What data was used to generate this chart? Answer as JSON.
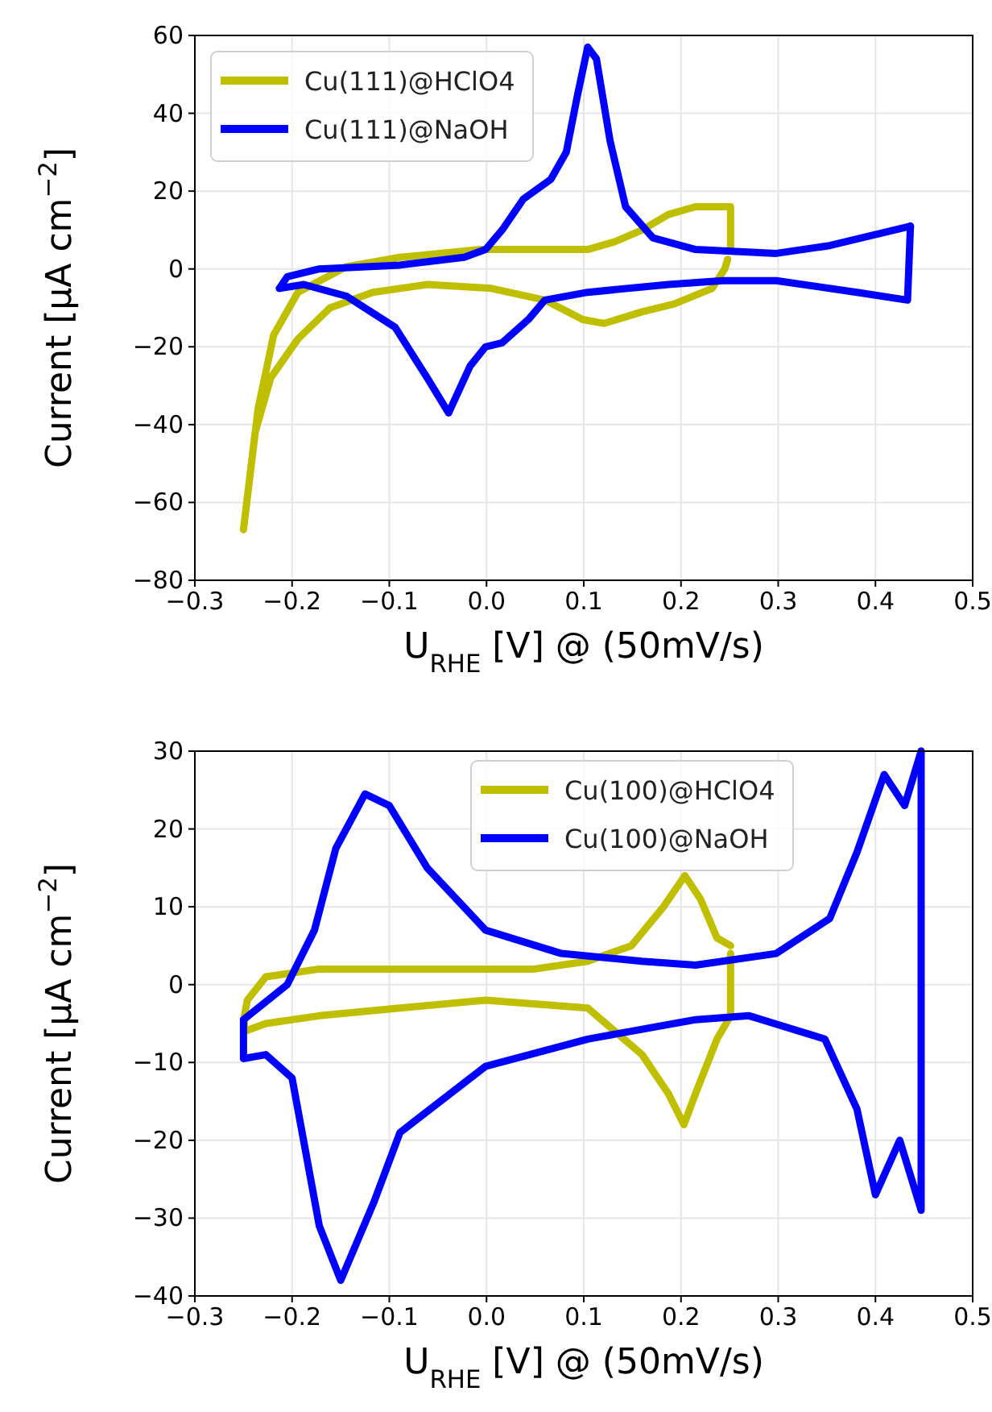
{
  "chart_data": [
    {
      "type": "line",
      "xlabel": "U$_{RHE}$ [V] @ (50mV/s)",
      "ylabel": "Current [μA cm$^{−2}$]",
      "xlim": [
        -0.3,
        0.5
      ],
      "ylim": [
        -80,
        60
      ],
      "xticks": [
        {
          "value": -0.3,
          "label": "−0.3"
        },
        {
          "value": -0.2,
          "label": "−0.2"
        },
        {
          "value": -0.1,
          "label": "−0.1"
        },
        {
          "value": 0,
          "label": "0.0"
        },
        {
          "value": 0.1,
          "label": "0.1"
        },
        {
          "value": 0.2,
          "label": "0.2"
        },
        {
          "value": 0.3,
          "label": "0.3"
        },
        {
          "value": 0.4,
          "label": "0.4"
        },
        {
          "value": 0.5,
          "label": "0.5"
        }
      ],
      "yticks": [
        {
          "value": -80,
          "label": "−80"
        },
        {
          "value": -60,
          "label": "−60"
        },
        {
          "value": -40,
          "label": "−40"
        },
        {
          "value": -20,
          "label": "−20"
        },
        0,
        20,
        40,
        60
      ],
      "grid": true,
      "legend": "top left",
      "line_style": "solid",
      "marker": "none",
      "series": [
        {
          "name": "Cu(111)@HClO4",
          "color": "#bfbf00",
          "x": [
            0.248,
            0.245,
            0.232,
            0.193,
            0.16,
            0.121,
            0.099,
            0.06,
            0.005,
            -0.061,
            -0.117,
            -0.161,
            -0.194,
            -0.222,
            -0.238,
            -0.25,
            -0.235,
            -0.219,
            -0.194,
            -0.144,
            -0.089,
            -0.006,
            0.104,
            0.132,
            0.16,
            0.187,
            0.215,
            0.251,
            0.251
          ],
          "values": [
            2.5,
            0,
            -5,
            -9,
            -11,
            -14,
            -13,
            -8,
            -5,
            -4,
            -6,
            -10,
            -18,
            -28,
            -42,
            -67,
            -36,
            -17,
            -6,
            0.6,
            3,
            5,
            5,
            7,
            10,
            14,
            16,
            16,
            5
          ]
        },
        {
          "name": "Cu(111)@NaOH",
          "color": "#0000ff",
          "x": [
            -0.213,
            -0.205,
            -0.172,
            -0.089,
            -0.023,
            -0.001,
            0.016,
            0.038,
            0.066,
            0.082,
            0.093,
            0.104,
            0.113,
            0.127,
            0.143,
            0.171,
            0.215,
            0.298,
            0.353,
            0.436
          ],
          "values": [
            -5,
            -2,
            0,
            1,
            3,
            5,
            10,
            18,
            23,
            30,
            44,
            57,
            54,
            33,
            16,
            8,
            5,
            4,
            6,
            11
          ]
        },
        {
          "color": "#0000ff",
          "x": [
            0.436,
            0.433,
            0.381,
            0.298,
            0.243,
            0.187,
            0.104,
            0.06,
            0.043,
            0.016,
            -0.001,
            -0.017,
            -0.039,
            -0.061,
            -0.094,
            -0.144,
            -0.188,
            -0.213
          ],
          "values": [
            11,
            -8,
            -6,
            -3,
            -3,
            -4,
            -6,
            -8,
            -13,
            -19,
            -20,
            -25,
            -37,
            -28,
            -15,
            -7,
            -4,
            -5
          ]
        }
      ]
    },
    {
      "type": "line",
      "xlabel": "U$_{RHE}$ [V] @ (50mV/s)",
      "ylabel": "Current [μA cm$^{−2}$]",
      "xlim": [
        -0.3,
        0.5
      ],
      "ylim": [
        -40,
        30
      ],
      "xticks": [
        {
          "value": -0.3,
          "label": "−0.3"
        },
        {
          "value": -0.2,
          "label": "−0.2"
        },
        {
          "value": -0.1,
          "label": "−0.1"
        },
        {
          "value": 0,
          "label": "0.0"
        },
        {
          "value": 0.1,
          "label": "0.1"
        },
        {
          "value": 0.2,
          "label": "0.2"
        },
        {
          "value": 0.3,
          "label": "0.3"
        },
        {
          "value": 0.4,
          "label": "0.4"
        },
        {
          "value": 0.5,
          "label": "0.5"
        }
      ],
      "yticks": [
        {
          "value": -40,
          "label": "−40"
        },
        {
          "value": -30,
          "label": "−30"
        },
        {
          "value": -20,
          "label": "−20"
        },
        {
          "value": -10,
          "label": "−10"
        },
        0,
        10,
        20,
        30
      ],
      "grid": true,
      "legend": "top center",
      "line_style": "solid",
      "marker": "none",
      "series": [
        {
          "name": "Cu(100)@HClO4",
          "color": "#bfbf00",
          "x": [
            0.251,
            0.251,
            0.237,
            0.215,
            0.203,
            0.187,
            0.16,
            0.104,
            -0.001,
            -0.089,
            -0.172,
            -0.227,
            -0.249,
            -0.249,
            -0.246,
            -0.227,
            -0.172,
            -0.061,
            0.049,
            0.104,
            0.149,
            0.182,
            0.204,
            0.22,
            0.237,
            0.251
          ],
          "values": [
            4,
            -4,
            -7,
            -14,
            -18,
            -14,
            -9,
            -3,
            -2,
            -3,
            -4,
            -5,
            -6,
            -4,
            -2,
            1,
            2,
            2,
            2,
            3,
            5,
            10,
            14,
            11,
            6,
            5
          ]
        },
        {
          "name": "Cu(100)@NaOH",
          "color": "#0000ff",
          "x": [
            -0.25,
            -0.205,
            -0.177,
            -0.155,
            -0.125,
            -0.1,
            -0.061,
            -0.001,
            0.077,
            0.16,
            0.215,
            0.298,
            0.353,
            0.381,
            0.409,
            0.43,
            0.447
          ],
          "values": [
            -4.5,
            0,
            7,
            17.5,
            24.5,
            23,
            15,
            7,
            4,
            3,
            2.5,
            4,
            8.5,
            17,
            27,
            23,
            30
          ]
        },
        {
          "color": "#0000ff",
          "x": [
            0.447,
            0.447,
            0.425,
            0.4,
            0.381,
            0.348,
            0.27,
            0.215,
            0.104,
            -0.001,
            -0.089,
            -0.116,
            -0.15,
            -0.172,
            -0.2,
            -0.227,
            -0.25,
            -0.25
          ],
          "values": [
            30,
            -29,
            -20,
            -27,
            -16,
            -7,
            -4,
            -4.5,
            -7,
            -10.5,
            -19,
            -28,
            -38,
            -31,
            -12,
            -9,
            -9.5,
            -4.5
          ]
        }
      ]
    }
  ]
}
